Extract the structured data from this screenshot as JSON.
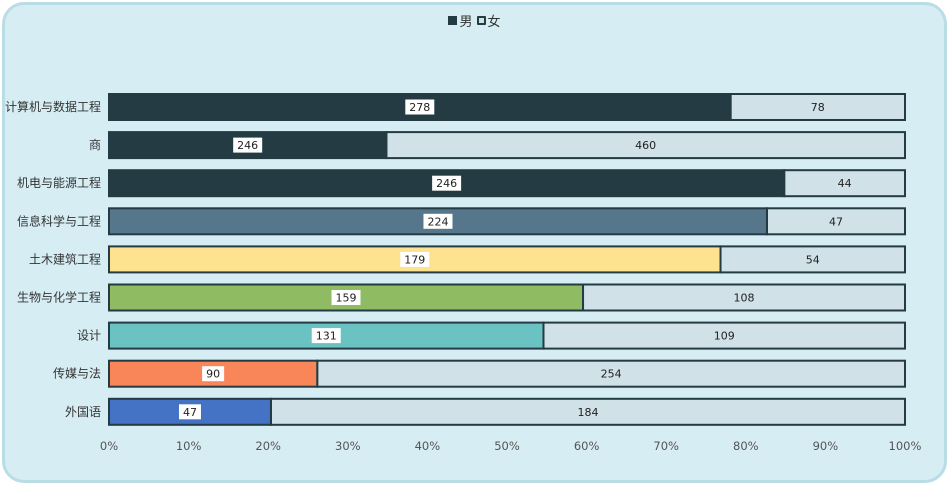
{
  "chart_data": {
    "type": "bar",
    "orientation": "horizontal",
    "stacked": "percent",
    "legend": "top-center",
    "categories": [
      "计算机与数据工程",
      "商",
      "机电与能源工程",
      "信息科学与工程",
      "土木建筑工程",
      "生物与化学工程",
      "设计",
      "传媒与法",
      "外国语"
    ],
    "series": [
      {
        "name": "男",
        "values": [
          278,
          246,
          246,
          224,
          179,
          159,
          131,
          90,
          47
        ],
        "colors": [
          "#243b44",
          "#243b44",
          "#243b44",
          "#56778b",
          "#fde28f",
          "#8fbb62",
          "#6bc2c2",
          "#f98659",
          "#4472c4"
        ]
      },
      {
        "name": "女",
        "values": [
          78,
          460,
          44,
          47,
          54,
          108,
          109,
          254,
          184
        ],
        "color": "#d0e1e8"
      }
    ],
    "x_ticks": [
      "0%",
      "10%",
      "20%",
      "30%",
      "40%",
      "50%",
      "60%",
      "70%",
      "80%",
      "90%",
      "100%"
    ],
    "xlim": [
      0,
      100
    ],
    "title": "",
    "xlabel": "",
    "ylabel": "",
    "bar_outline_color": "#243b44"
  }
}
